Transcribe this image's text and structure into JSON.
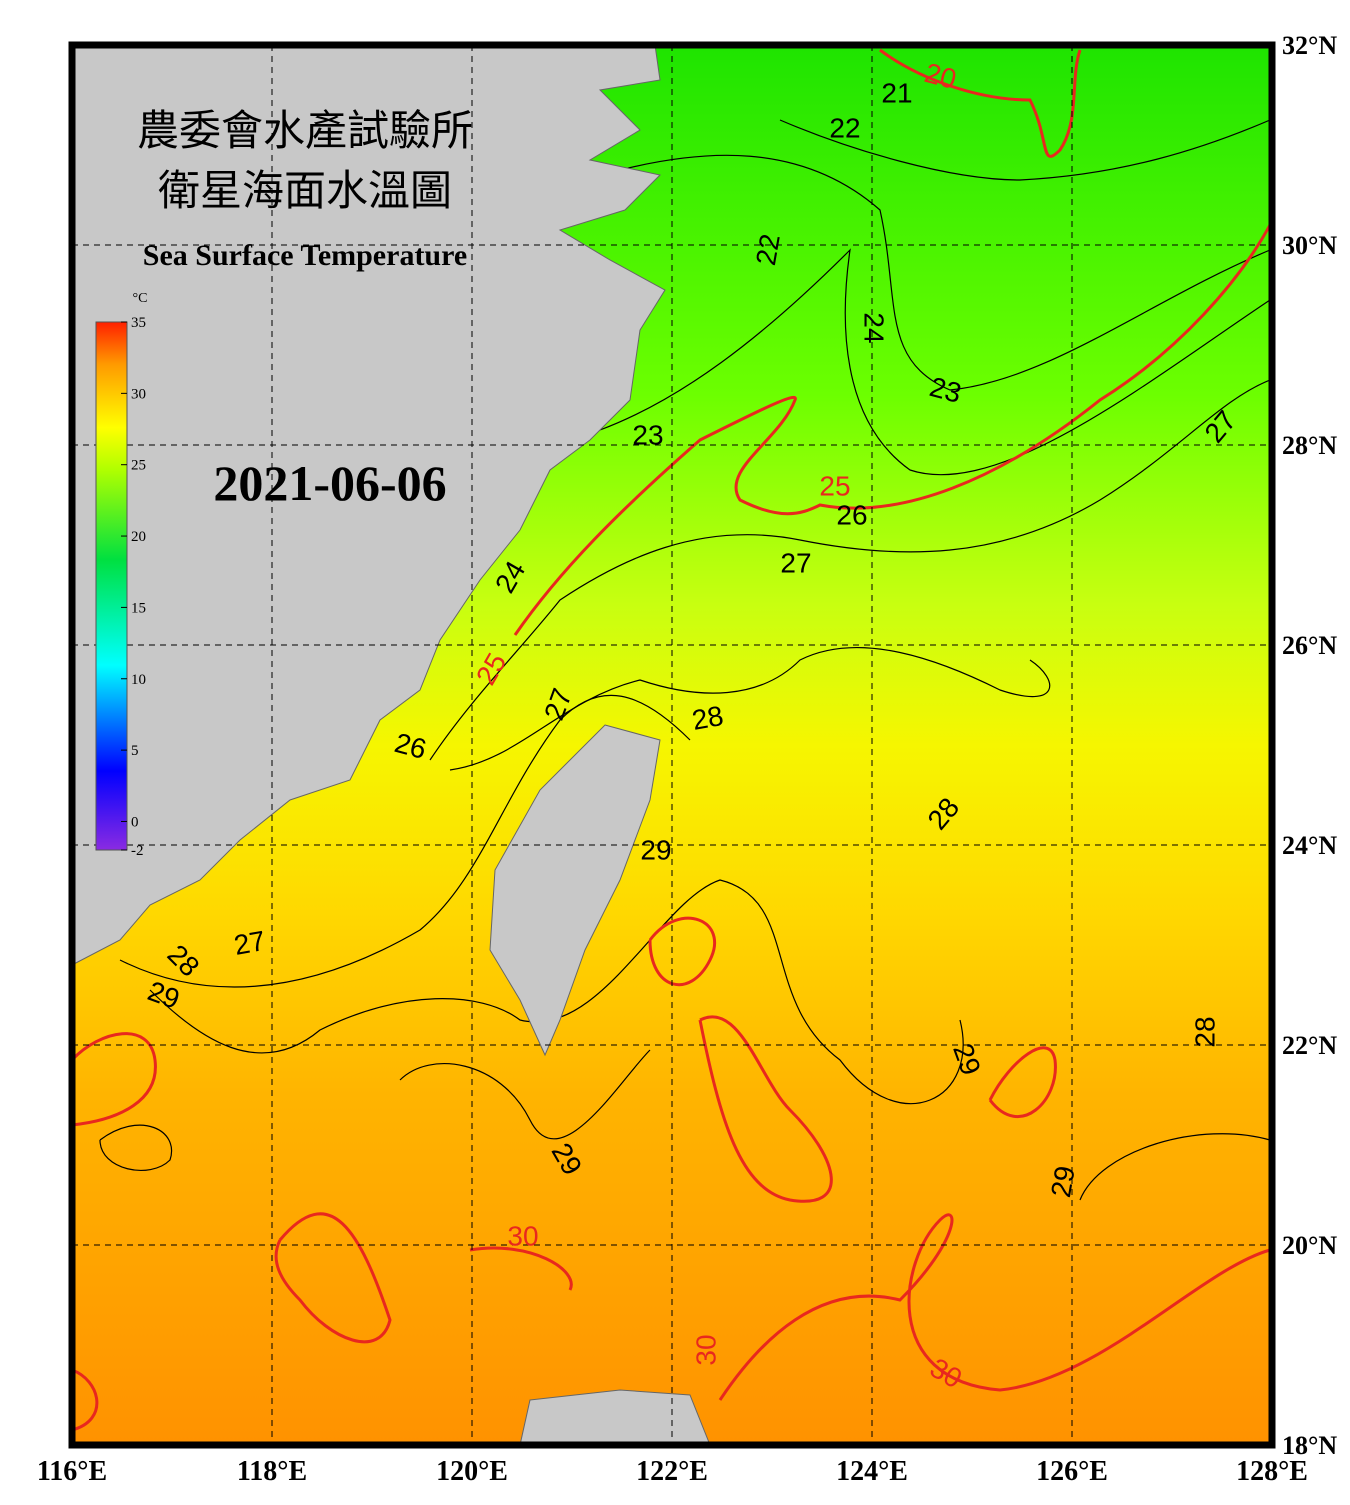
{
  "header": {
    "title_zh_1": "農委會水產試驗所",
    "title_zh_2": "衛星海面水溫圖",
    "title_en": "Sea Surface Temperature",
    "date": "2021-06-06"
  },
  "colorbar": {
    "unit": "°C",
    "range": [
      -2,
      35
    ],
    "ticks": [
      35,
      30,
      25,
      20,
      15,
      10,
      5,
      0,
      -2
    ]
  },
  "lon_ticks": [
    {
      "value": 116,
      "label": "116°E"
    },
    {
      "value": 118,
      "label": "118°E"
    },
    {
      "value": 120,
      "label": "120°E"
    },
    {
      "value": 122,
      "label": "122°E"
    },
    {
      "value": 124,
      "label": "124°E"
    },
    {
      "value": 126,
      "label": "126°E"
    },
    {
      "value": 128,
      "label": "128°E"
    }
  ],
  "lat_ticks": [
    {
      "value": 32,
      "label": "32°N"
    },
    {
      "value": 30,
      "label": "30°N"
    },
    {
      "value": 28,
      "label": "28°N"
    },
    {
      "value": 26,
      "label": "26°N"
    },
    {
      "value": 24,
      "label": "24°N"
    },
    {
      "value": 22,
      "label": "22°N"
    },
    {
      "value": 20,
      "label": "20°N"
    },
    {
      "value": 18,
      "label": "18°N"
    }
  ],
  "lon_range": [
    116,
    128
  ],
  "lat_range": [
    18,
    32
  ],
  "contour_labels": [
    21,
    20,
    22,
    22,
    24,
    23,
    23,
    25,
    26,
    27,
    24,
    25,
    27,
    28,
    26,
    29,
    28,
    27,
    28,
    29,
    27,
    28,
    29,
    29,
    29,
    30,
    30,
    30
  ],
  "highlight_contours": [
    20,
    25,
    30
  ],
  "highlight_color": "#e8281e"
}
